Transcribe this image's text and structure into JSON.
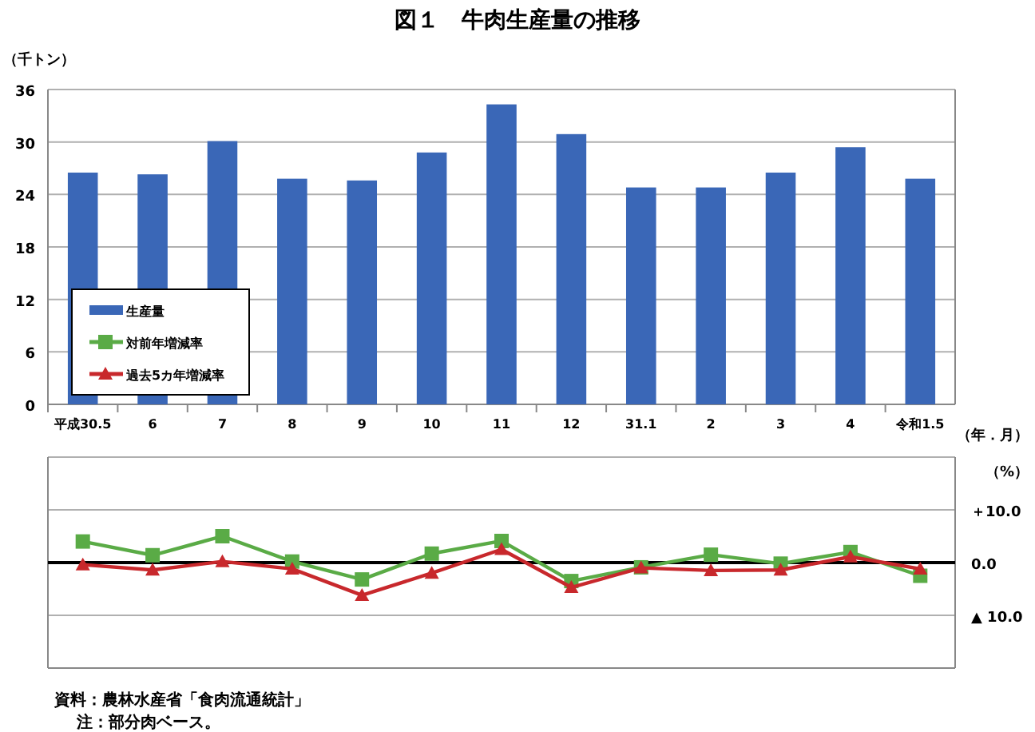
{
  "chart_data": [
    {
      "type": "bar",
      "title": "図１　牛肉生産量の推移",
      "ylabel": "（千トン）",
      "xlabel": "（年．月）",
      "categories": [
        "平成30.5",
        "6",
        "7",
        "8",
        "9",
        "10",
        "11",
        "12",
        "31.1",
        "2",
        "3",
        "4",
        "令和1.5"
      ],
      "series": [
        {
          "name": "生産量",
          "color": "#3a67b7",
          "values": [
            26.5,
            26.3,
            30.1,
            25.8,
            25.6,
            28.8,
            34.3,
            30.9,
            24.8,
            24.8,
            26.5,
            29.4,
            25.8
          ]
        }
      ],
      "ylim": [
        0,
        36
      ],
      "yticks": [
        0,
        6,
        12,
        18,
        24,
        30,
        36
      ],
      "grid": "y",
      "legend": "bottom left"
    },
    {
      "type": "line",
      "ylabel": "（%）",
      "categories": [
        null,
        null,
        null,
        null,
        null,
        null,
        null,
        null,
        null,
        null,
        null,
        null,
        null
      ],
      "series": [
        {
          "name": "対前年増減率",
          "color": "#5aab46",
          "marker": "square",
          "values": [
            4.0,
            1.4,
            5.0,
            0.2,
            -3.2,
            1.7,
            4.1,
            -3.5,
            -0.9,
            1.5,
            -0.2,
            2.0,
            -2.5
          ]
        },
        {
          "name": "過去5カ年増減率",
          "color": "#c8282c",
          "marker": "triangle",
          "values": [
            -0.4,
            -1.4,
            0.2,
            -1.2,
            -6.2,
            -2.0,
            2.5,
            -4.7,
            -1.0,
            -1.5,
            -1.4,
            1.1,
            -1.2
          ]
        }
      ],
      "ylim": [
        -20,
        20
      ],
      "yticks": [
        {
          "value": -20,
          "label": null
        },
        {
          "value": -10,
          "label": "▲ 10.0"
        },
        {
          "value": 0,
          "label": "0.0"
        },
        {
          "value": 10,
          "label": "＋10.0"
        },
        {
          "value": 20,
          "label": null
        }
      ],
      "grid": "y",
      "tick_labels": "y",
      "legend": "top left",
      "ref_lines": [
        {
          "axis": "y",
          "value": 0,
          "color": "#000000"
        }
      ],
      "annotations": [
        "資料：農林水産省「食肉流通統計」",
        "注：部分肉ベース。"
      ]
    }
  ]
}
